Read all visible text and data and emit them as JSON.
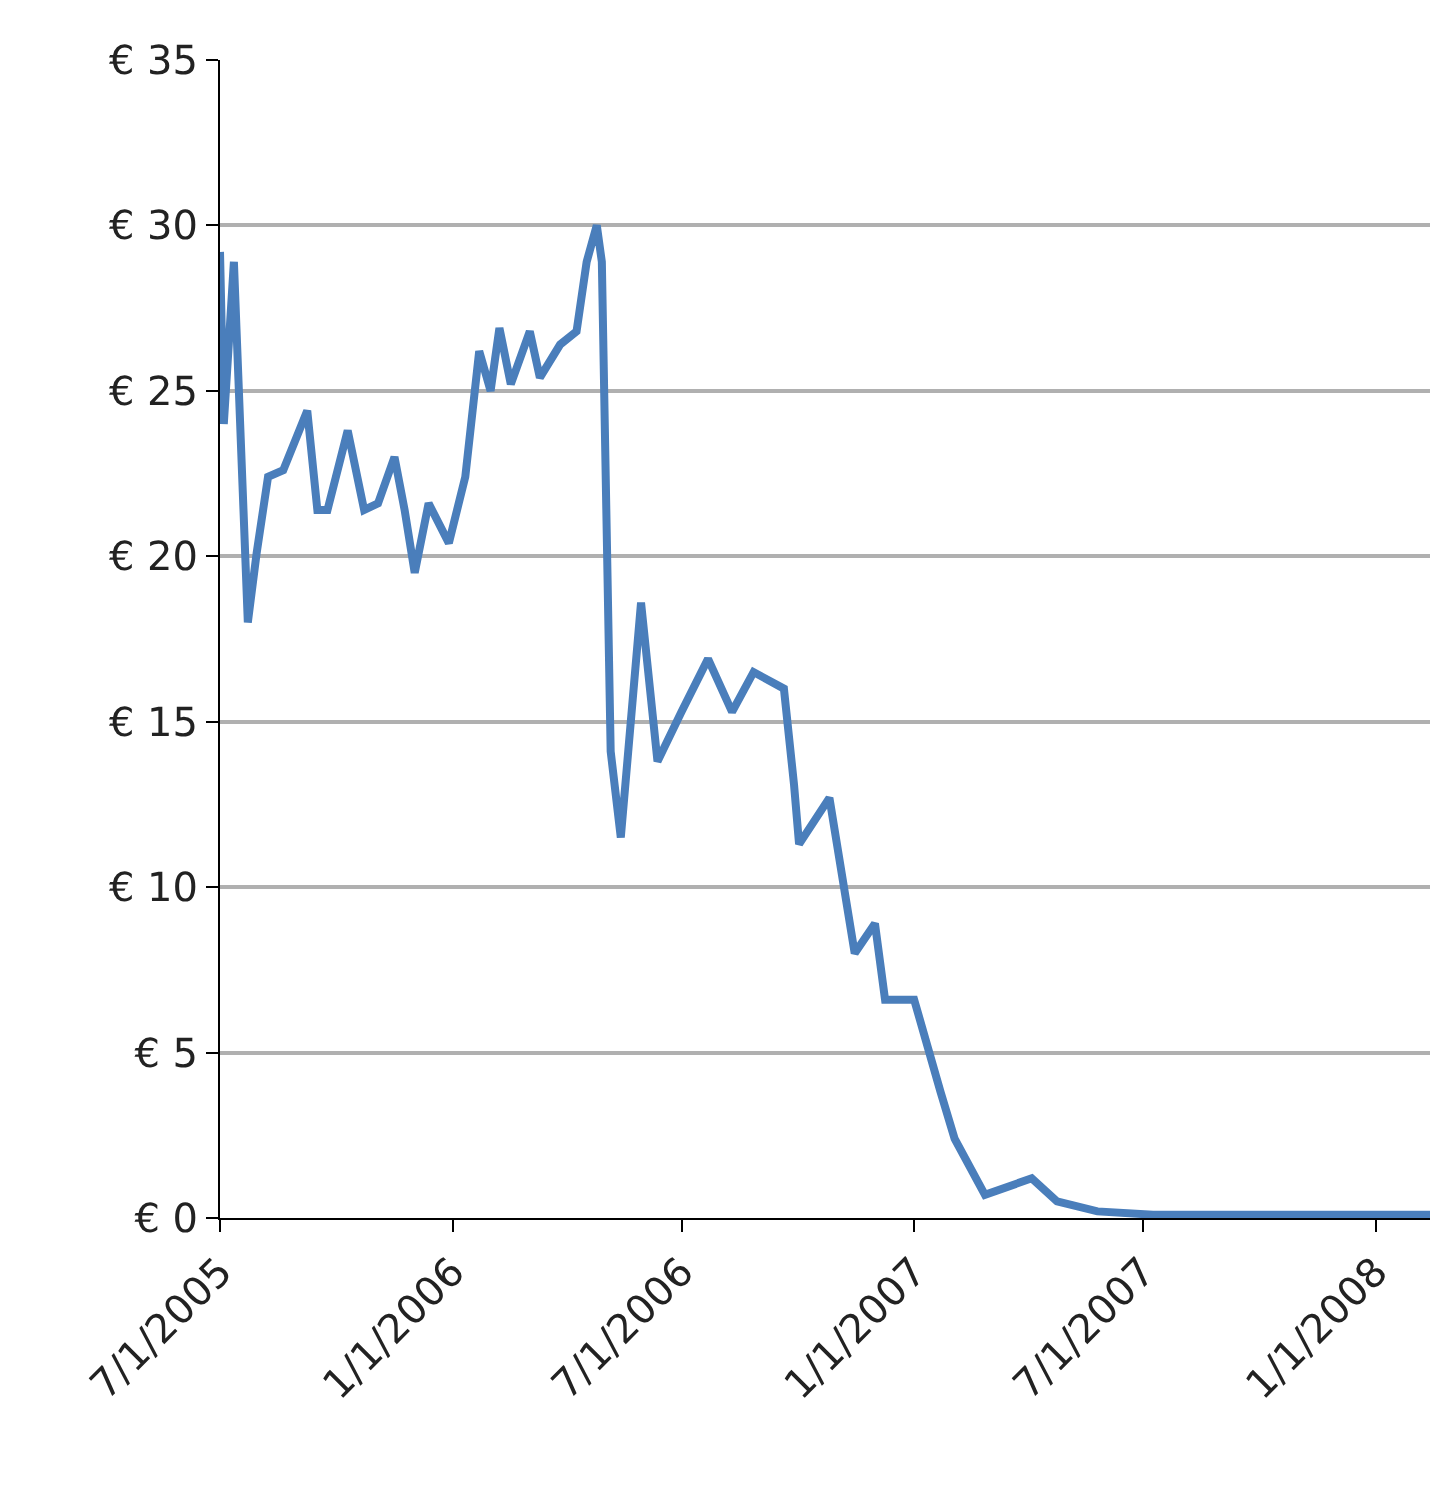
{
  "chart_data": {
    "type": "line",
    "x": [
      "2005-07-01",
      "2005-07-04",
      "2005-07-12",
      "2005-07-23",
      "2005-07-30",
      "2005-08-08",
      "2005-08-20",
      "2005-09-08",
      "2005-09-16",
      "2005-09-24",
      "2005-10-10",
      "2005-10-23",
      "2005-11-03",
      "2005-11-16",
      "2005-11-24",
      "2005-12-02",
      "2005-12-13",
      "2005-12-29",
      "2006-01-11",
      "2006-01-22",
      "2006-01-31",
      "2006-02-07",
      "2006-02-16",
      "2006-03-03",
      "2006-03-11",
      "2006-03-27",
      "2006-04-09",
      "2006-04-17",
      "2006-04-25",
      "2006-04-29",
      "2006-05-06",
      "2006-05-14",
      "2006-05-30",
      "2006-06-12",
      "2006-07-01",
      "2006-07-22",
      "2006-08-10",
      "2006-08-27",
      "2006-09-20",
      "2006-09-28",
      "2006-10-02",
      "2006-10-26",
      "2006-11-15",
      "2006-12-01",
      "2006-12-09",
      "2007-01-01",
      "2007-01-22",
      "2007-02-02",
      "2007-02-26",
      "2007-04-04",
      "2007-04-24",
      "2007-05-26",
      "2007-07-09",
      "2008-02-13"
    ],
    "series": [
      {
        "color": "#4a7ebb",
        "values": [
          29.2,
          24.0,
          28.9,
          18.0,
          20.1,
          22.4,
          22.6,
          24.4,
          21.4,
          21.4,
          23.8,
          21.4,
          21.6,
          23.0,
          21.4,
          19.5,
          21.6,
          20.4,
          22.4,
          26.2,
          25.0,
          26.9,
          25.2,
          26.8,
          25.4,
          26.4,
          26.8,
          28.9,
          30.0,
          28.9,
          14.1,
          11.5,
          18.6,
          13.8,
          15.3,
          16.9,
          15.3,
          16.5,
          16.0,
          13.1,
          11.3,
          12.7,
          8.0,
          8.9,
          6.6,
          6.6,
          3.8,
          2.4,
          0.7,
          1.2,
          0.5,
          0.2,
          0.1,
          0.1
        ]
      }
    ],
    "xlim": [
      "2005-07-01",
      "2008-02-13"
    ],
    "xticks": [
      {
        "value": "2005-07-01",
        "label": "7/1/2005"
      },
      {
        "value": "2006-01-01",
        "label": "1/1/2006"
      },
      {
        "value": "2006-07-01",
        "label": "7/1/2006"
      },
      {
        "value": "2007-01-01",
        "label": "1/1/2007"
      },
      {
        "value": "2007-07-01",
        "label": "7/1/2007"
      },
      {
        "value": "2008-01-01",
        "label": "1/1/2008"
      }
    ],
    "ylim": [
      0,
      35
    ],
    "yticks": [
      {
        "value": 0,
        "label": "€ 0"
      },
      {
        "value": 5,
        "label": "€ 5"
      },
      {
        "value": 10,
        "label": "€ 10"
      },
      {
        "value": 15,
        "label": "€ 15"
      },
      {
        "value": 20,
        "label": "€ 20"
      },
      {
        "value": 25,
        "label": "€ 25"
      },
      {
        "value": 30,
        "label": "€ 30"
      },
      {
        "value": 35,
        "label": "€ 35"
      }
    ],
    "grid": "y",
    "marker": "none",
    "line_style": "solid"
  }
}
